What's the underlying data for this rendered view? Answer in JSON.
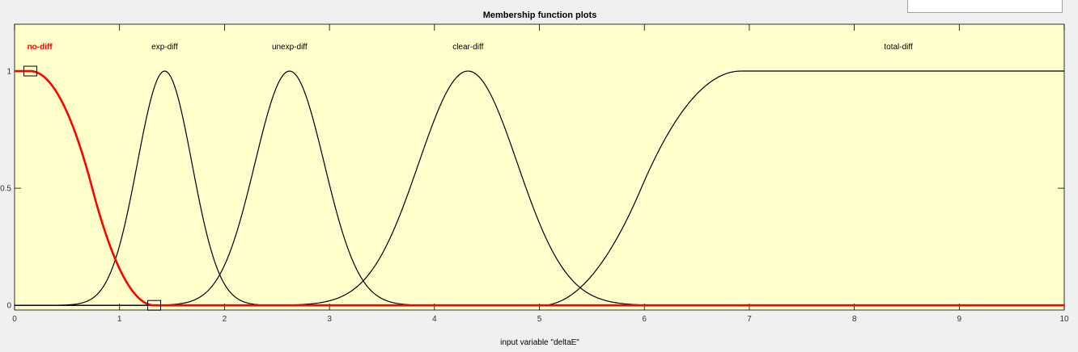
{
  "top_value_box": {
    "text": ""
  },
  "chart_data": {
    "type": "line",
    "title": "Membership function plots",
    "xlabel": "input variable \"deltaE\"",
    "ylabel": "",
    "xlim": [
      0,
      10
    ],
    "ylim": [
      -0.02,
      1.2
    ],
    "xticks": [
      0,
      1,
      2,
      3,
      4,
      5,
      6,
      7,
      8,
      9,
      10
    ],
    "yticks": [
      0,
      0.5,
      1
    ],
    "ytick_labels": [
      "0",
      "0.5",
      "1"
    ],
    "grid": false,
    "background": "#ffffcc",
    "active_color": "#ff0000",
    "line_color": "#000000",
    "series": [
      {
        "name": "no-diff",
        "mf": "zmf",
        "params": [
          0.15,
          1.33
        ],
        "active": true,
        "label_x": 0.24
      },
      {
        "name": "exp-diff",
        "mf": "gaussmf",
        "params": [
          0.26,
          1.43
        ],
        "active": false,
        "label_x": 1.43
      },
      {
        "name": "unexp-diff",
        "mf": "gaussmf",
        "params": [
          0.33,
          2.62
        ],
        "active": false,
        "label_x": 2.62
      },
      {
        "name": "clear-diff",
        "mf": "gaussmf",
        "params": [
          0.47,
          4.32
        ],
        "active": false,
        "label_x": 4.32
      },
      {
        "name": "total-diff",
        "mf": "smf",
        "params": [
          5.02,
          6.92
        ],
        "active": false,
        "label_x": 8.42
      }
    ]
  }
}
